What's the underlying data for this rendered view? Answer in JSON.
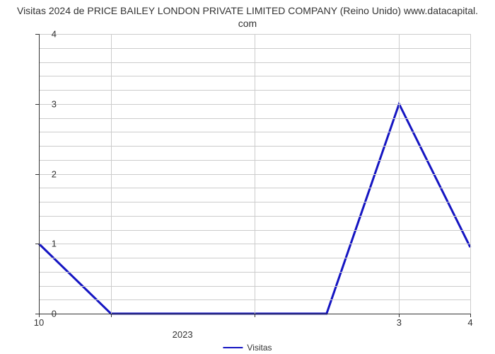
{
  "chart": {
    "type": "line",
    "title_line1": "Visitas 2024 de PRICE BAILEY LONDON PRIVATE LIMITED COMPANY (Reino Unido) www.datacapital.",
    "title_line2": "com",
    "title_fontsize": 14,
    "title_color": "#333333",
    "background_color": "#ffffff",
    "grid_color": "#cccccc",
    "axis_color": "#333333",
    "line_color": "#1515c2",
    "line_width": 3,
    "ylim": [
      0,
      4
    ],
    "y_ticks": [
      0,
      1,
      2,
      3,
      4
    ],
    "y_minor_ticks_per": 5,
    "x_ticks": [
      {
        "pos": 0.0,
        "label": "10"
      },
      {
        "pos": 0.835,
        "label": "3"
      },
      {
        "pos": 1.0,
        "label": "4"
      }
    ],
    "x_minor_tick_positions": [
      0.167,
      0.5
    ],
    "x_axis_center_label": "2023",
    "x_axis_center_pos": 0.333,
    "series": {
      "name": "Visitas",
      "points": [
        {
          "x": 0.0,
          "y": 1.0
        },
        {
          "x": 0.167,
          "y": 0.0
        },
        {
          "x": 0.333,
          "y": 0.0
        },
        {
          "x": 0.5,
          "y": 0.0
        },
        {
          "x": 0.667,
          "y": 0.0
        },
        {
          "x": 0.835,
          "y": 3.0
        },
        {
          "x": 1.0,
          "y": 0.95
        }
      ]
    },
    "legend_label": "Visitas"
  }
}
